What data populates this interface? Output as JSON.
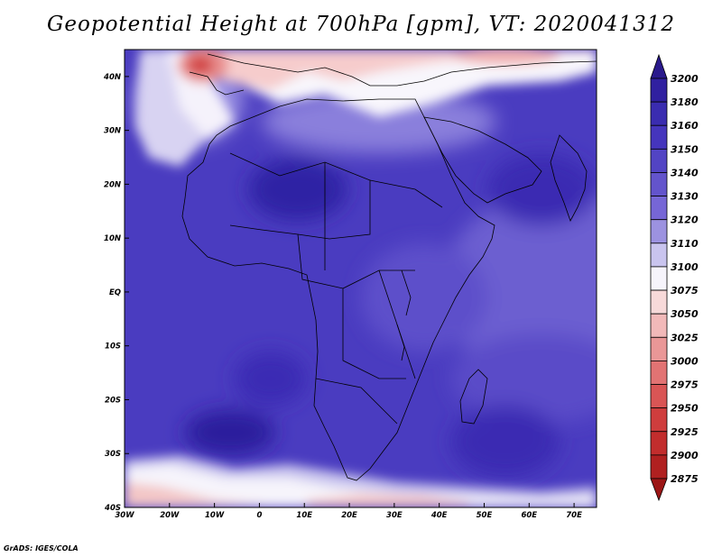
{
  "title": "Geopotential Height at 700hPa [gpm], VT: 2020041312",
  "credit": "GrADS: IGES/COLA",
  "map": {
    "lon_range": [
      -30,
      75
    ],
    "lat_range": [
      -40,
      45
    ],
    "x_ticks": [
      {
        "value": -30,
        "label": "30W"
      },
      {
        "value": -20,
        "label": "20W"
      },
      {
        "value": -10,
        "label": "10W"
      },
      {
        "value": 0,
        "label": "0"
      },
      {
        "value": 10,
        "label": "10E"
      },
      {
        "value": 20,
        "label": "20E"
      },
      {
        "value": 30,
        "label": "30E"
      },
      {
        "value": 40,
        "label": "40E"
      },
      {
        "value": 50,
        "label": "50E"
      },
      {
        "value": 60,
        "label": "60E"
      },
      {
        "value": 70,
        "label": "70E"
      }
    ],
    "y_ticks": [
      {
        "value": 40,
        "label": "40N"
      },
      {
        "value": 30,
        "label": "30N"
      },
      {
        "value": 20,
        "label": "20N"
      },
      {
        "value": 10,
        "label": "10N"
      },
      {
        "value": 0,
        "label": "EQ"
      },
      {
        "value": -10,
        "label": "10S"
      },
      {
        "value": -20,
        "label": "20S"
      },
      {
        "value": -30,
        "label": "30S"
      },
      {
        "value": -40,
        "label": "40S"
      }
    ]
  },
  "colorbar": {
    "levels": [
      3200,
      3180,
      3160,
      3150,
      3140,
      3130,
      3120,
      3110,
      3100,
      3075,
      3050,
      3025,
      3000,
      2975,
      2950,
      2925,
      2900,
      2875
    ],
    "colors": [
      "#2a1a8c",
      "#3020a0",
      "#3a2cb0",
      "#4535bd",
      "#5244c4",
      "#6354cc",
      "#7666d6",
      "#9c92e0",
      "#c9c4ee",
      "#f6f4fb",
      "#f7d9d9",
      "#f2b9b9",
      "#ea9797",
      "#e27373",
      "#d95555",
      "#cf3d3d",
      "#c22d2d",
      "#b02020",
      "#9c1616"
    ]
  }
}
